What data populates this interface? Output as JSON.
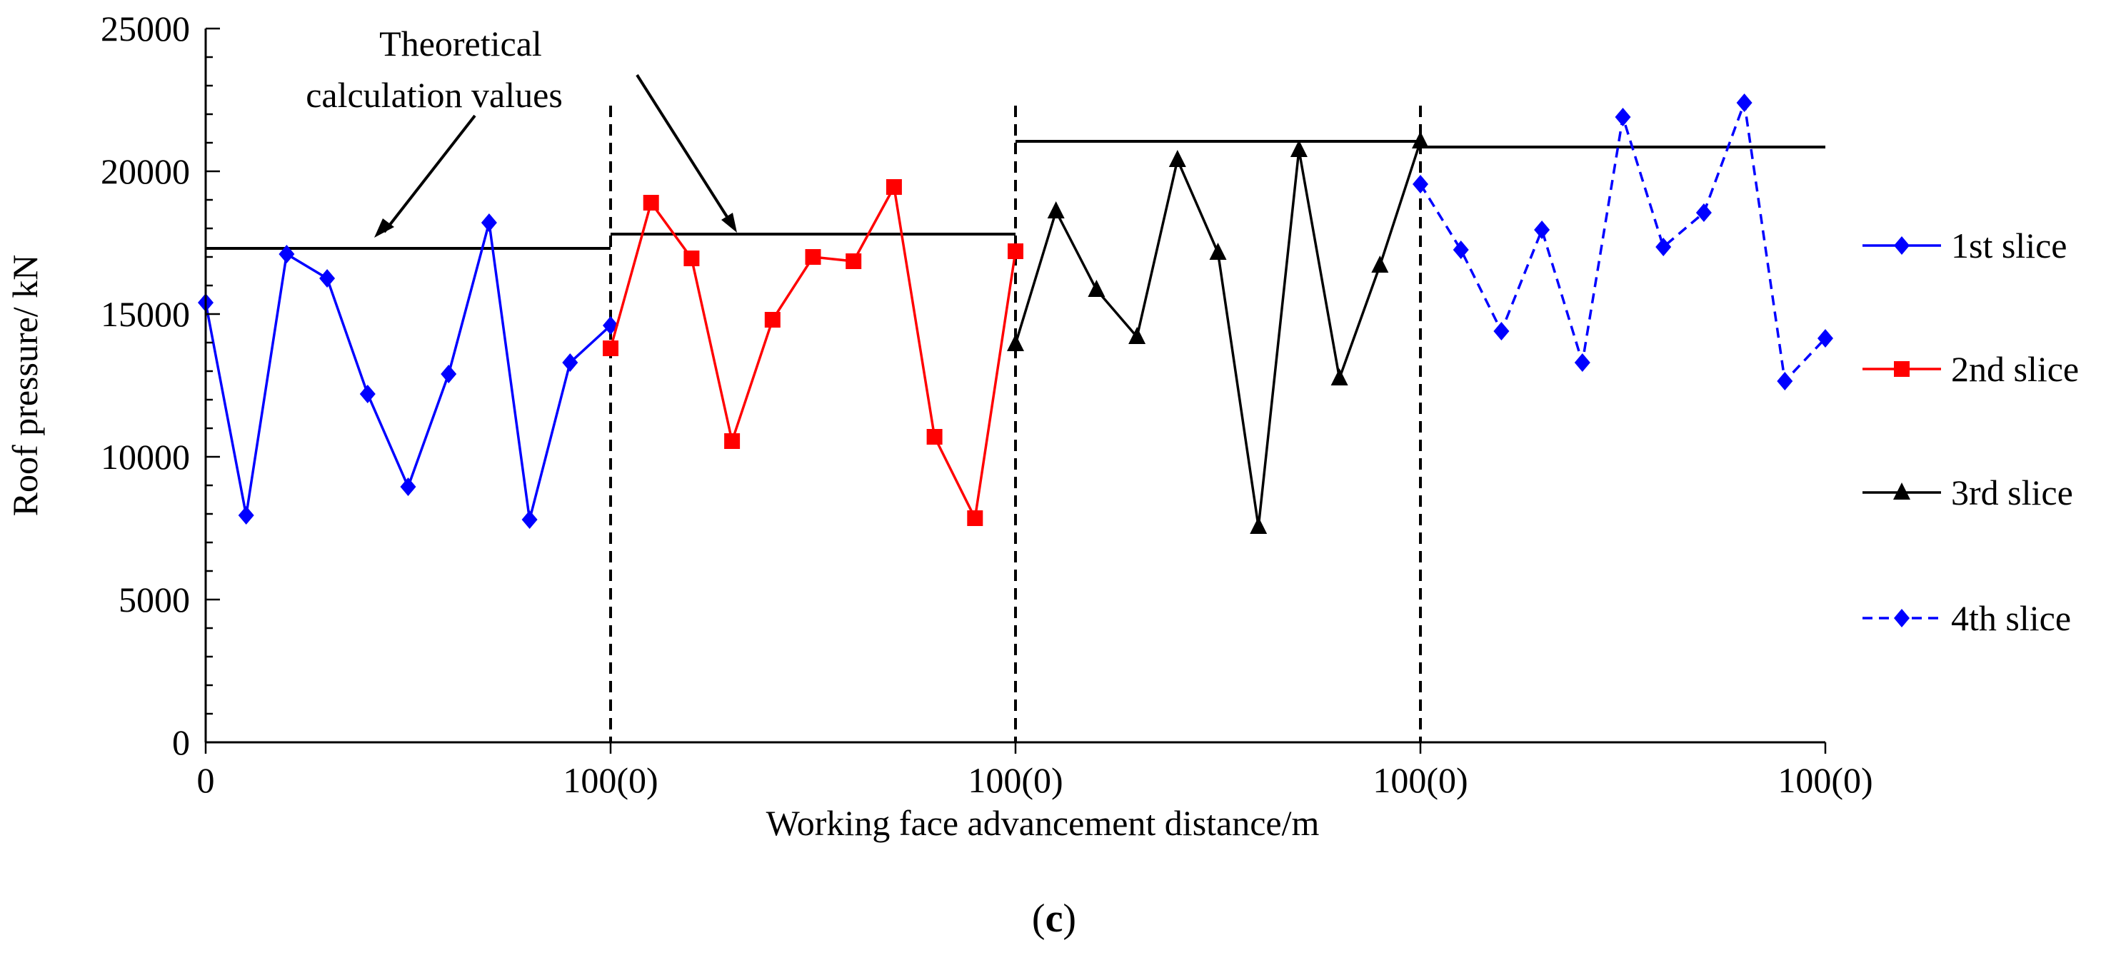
{
  "chart_data": {
    "type": "line",
    "xlabel": "Working face advancement distance/m",
    "ylabel": "Roof pressure/ kN",
    "ylim": [
      0,
      25000
    ],
    "yticks": [
      0,
      5000,
      10000,
      15000,
      20000,
      25000
    ],
    "xlim": [
      0,
      400
    ],
    "xtick_values": [
      0,
      100,
      200,
      300,
      400
    ],
    "xtick_labels": [
      "0",
      "100(0)",
      "100(0)",
      "100(0)",
      "100(0)"
    ],
    "grid": false,
    "legend_position": "right",
    "series": [
      {
        "name": "1st slice",
        "color": "#0000ff",
        "marker": "diamond",
        "dash": "solid",
        "x": [
          0,
          10,
          20,
          30,
          40,
          50,
          60,
          70,
          80,
          90,
          100
        ],
        "y": [
          15400,
          7950,
          17100,
          16250,
          12200,
          8950,
          12900,
          18200,
          7800,
          13300,
          14600
        ]
      },
      {
        "name": "2nd slice",
        "color": "#ff0000",
        "marker": "square",
        "dash": "solid",
        "x": [
          100,
          110,
          120,
          130,
          140,
          150,
          160,
          170,
          180,
          190,
          200
        ],
        "y": [
          13800,
          18900,
          16950,
          10550,
          14800,
          17000,
          16850,
          19450,
          10700,
          7850,
          17200
        ]
      },
      {
        "name": "3rd slice",
        "color": "#000000",
        "marker": "triangle",
        "dash": "solid",
        "x": [
          200,
          210,
          220,
          230,
          240,
          250,
          260,
          270,
          280,
          290,
          300
        ],
        "y": [
          13950,
          18600,
          15850,
          14200,
          20400,
          17150,
          7550,
          20750,
          12750,
          16700,
          21050
        ]
      },
      {
        "name": "4th slice",
        "color": "#0000ff",
        "marker": "diamond",
        "dash": "dashed",
        "x": [
          300,
          310,
          320,
          330,
          340,
          350,
          360,
          370,
          380,
          390,
          400
        ],
        "y": [
          19550,
          17250,
          14400,
          17950,
          13300,
          21900,
          17350,
          18550,
          22400,
          12650,
          14150
        ]
      }
    ],
    "theoretical_lines": [
      {
        "x": [
          0,
          100
        ],
        "y": 17300
      },
      {
        "x": 100,
        "x_end": 200,
        "y": 17800
      },
      {
        "x": [
          200,
          300
        ],
        "y": 21050
      },
      {
        "x": [
          300,
          400
        ],
        "y": 20850
      }
    ],
    "divider_x": [
      100,
      200,
      300
    ],
    "annotation": {
      "line1": "Theoretical",
      "line2": "calculation values"
    },
    "caption_letter": "c"
  }
}
